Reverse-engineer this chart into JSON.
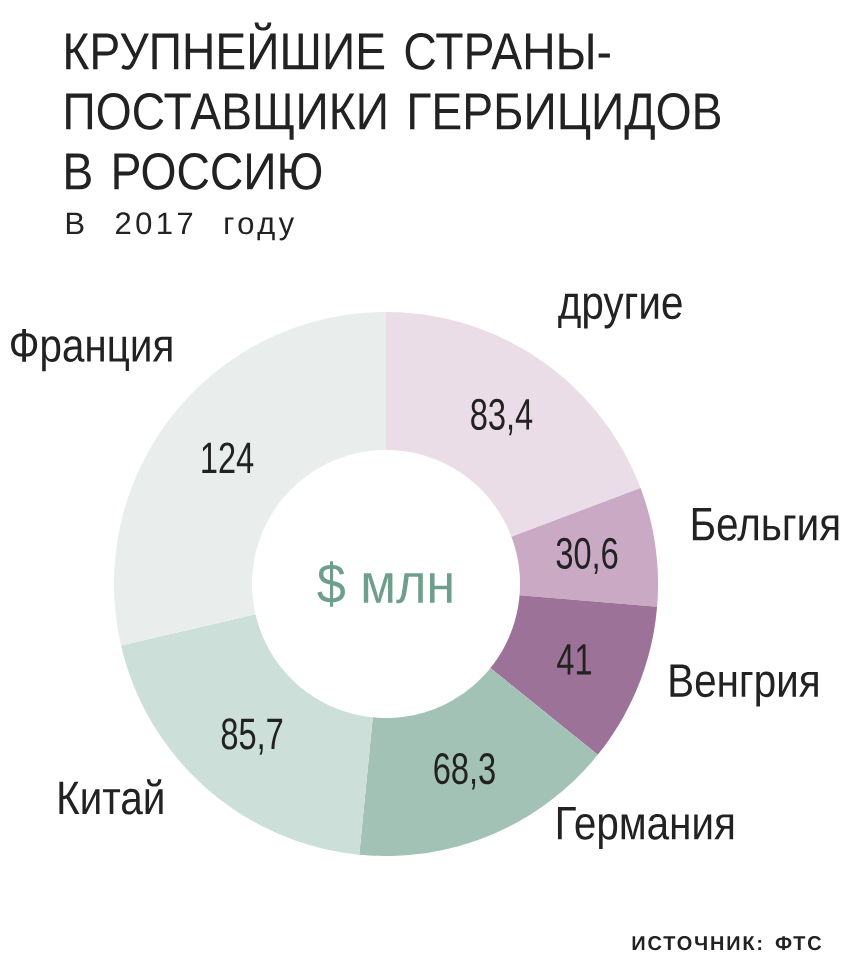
{
  "chart_data": {
    "type": "donut",
    "title": "КРУПНЕЙШИЕ СТРАНЫ-ПОСТАВЩИКИ ГЕРБИЦИДОВ В РОССИЮ",
    "subtitle": "В 2017 году",
    "categories": [
      "другие",
      "Бельгия",
      "Венгрия",
      "Германия",
      "Китай",
      "Франция"
    ],
    "values": [
      83.4,
      30.6,
      41,
      68.3,
      85.7,
      124
    ],
    "value_labels": [
      "83,4",
      "30,6",
      "41",
      "68,3",
      "85,7",
      "124"
    ],
    "colors": [
      "#eadde7",
      "#c9a9c4",
      "#9d7298",
      "#a2c2b6",
      "#cddfd9",
      "#e9eeec"
    ],
    "annotations": [
      "$ млн",
      "ИСТОЧНИК: ФТС"
    ]
  }
}
